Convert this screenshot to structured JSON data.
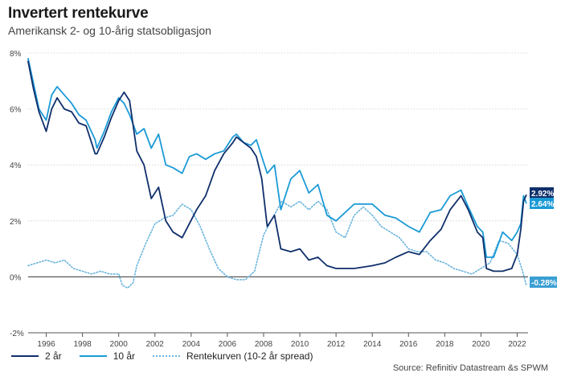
{
  "title": "Invertert rentekurve",
  "subtitle": "Amerikansk 2- og 10-årig statsobligasjon",
  "source": "Source: Refinitiv Datastream &s SPWM",
  "colors": {
    "y2": "#0f2f6b",
    "y10": "#1a9ad6",
    "spread": "#6ab4dc",
    "grid": "#cfcfcf",
    "zero": "#333333"
  },
  "legend": [
    {
      "label": "2 år",
      "series": "y2"
    },
    {
      "label": "10 år",
      "series": "y10"
    },
    {
      "label": "Rentekurven (10-2 år spread)",
      "series": "spread"
    }
  ],
  "chart_data": {
    "type": "line",
    "title": "Invertert rentekurve",
    "subtitle": "Amerikansk 2- og 10-årig statsobligasjon",
    "xlabel": "",
    "ylabel": "",
    "x_range": [
      1995.0,
      2022.6
    ],
    "ylim": [
      -2,
      8
    ],
    "y_ticks": [
      8,
      6,
      4,
      2,
      0,
      -2
    ],
    "y_tick_labels": [
      "8%",
      "6%",
      "4%",
      "2%",
      "0%",
      "-2%"
    ],
    "x_ticks": [
      1996,
      1998,
      2000,
      2002,
      2004,
      2006,
      2008,
      2010,
      2012,
      2014,
      2016,
      2018,
      2020,
      2022
    ],
    "x_tick_labels": [
      "1996",
      "1998",
      "2000",
      "2002",
      "2004",
      "2006",
      "2008",
      "2010",
      "2012",
      "2014",
      "2016",
      "2018",
      "2020",
      "2022"
    ],
    "grid": true,
    "legend_position": "bottom-left",
    "series": [
      {
        "name": "2 år",
        "key": "y2",
        "style": "solid",
        "end_label": "2.92%",
        "x": [
          1995.0,
          1995.3,
          1995.6,
          1996.0,
          1996.3,
          1996.6,
          1997.0,
          1997.4,
          1997.8,
          1998.2,
          1998.7,
          1998.8,
          1999.2,
          1999.6,
          2000.0,
          2000.3,
          2000.6,
          2001.0,
          2001.4,
          2001.8,
          2002.2,
          2002.6,
          2003.0,
          2003.5,
          2003.9,
          2004.3,
          2004.8,
          2005.3,
          2005.8,
          2006.3,
          2006.5,
          2006.9,
          2007.3,
          2007.6,
          2007.9,
          2008.2,
          2008.6,
          2008.95,
          2009.5,
          2010.0,
          2010.5,
          2011.0,
          2011.5,
          2012.0,
          2013.0,
          2014.0,
          2014.7,
          2015.3,
          2016.0,
          2016.6,
          2017.2,
          2017.8,
          2018.3,
          2018.9,
          2019.3,
          2019.8,
          2020.1,
          2020.3,
          2020.7,
          2021.2,
          2021.7,
          2022.0,
          2022.2,
          2022.35,
          2022.5
        ],
        "y": [
          7.7,
          6.7,
          5.9,
          5.2,
          6.0,
          6.4,
          6.0,
          5.9,
          5.5,
          5.4,
          4.4,
          4.4,
          5.0,
          5.7,
          6.3,
          6.6,
          6.3,
          4.5,
          4.0,
          2.8,
          3.2,
          2.0,
          1.6,
          1.4,
          1.9,
          2.4,
          2.9,
          3.8,
          4.4,
          4.8,
          5.0,
          4.8,
          4.6,
          4.3,
          3.5,
          1.8,
          2.2,
          1.0,
          0.9,
          1.0,
          0.6,
          0.7,
          0.4,
          0.3,
          0.3,
          0.4,
          0.5,
          0.7,
          0.9,
          0.8,
          1.3,
          1.7,
          2.4,
          2.9,
          2.4,
          1.6,
          1.4,
          0.3,
          0.2,
          0.2,
          0.3,
          0.8,
          1.7,
          2.7,
          2.92
        ]
      },
      {
        "name": "10 år",
        "key": "y10",
        "style": "solid",
        "end_label": "2.64%",
        "x": [
          1995.0,
          1995.3,
          1995.6,
          1996.0,
          1996.3,
          1996.6,
          1997.0,
          1997.4,
          1997.8,
          1998.2,
          1998.7,
          1998.8,
          1999.2,
          1999.6,
          2000.0,
          2000.3,
          2000.6,
          2001.0,
          2001.4,
          2001.8,
          2002.2,
          2002.6,
          2003.0,
          2003.5,
          2003.9,
          2004.3,
          2004.8,
          2005.3,
          2005.8,
          2006.3,
          2006.5,
          2006.9,
          2007.3,
          2007.6,
          2007.9,
          2008.2,
          2008.6,
          2008.95,
          2009.5,
          2010.0,
          2010.5,
          2011.0,
          2011.5,
          2012.0,
          2013.0,
          2014.0,
          2014.7,
          2015.3,
          2016.0,
          2016.6,
          2017.2,
          2017.8,
          2018.3,
          2018.9,
          2019.3,
          2019.8,
          2020.1,
          2020.3,
          2020.7,
          2021.2,
          2021.7,
          2022.0,
          2022.2,
          2022.35,
          2022.5
        ],
        "y": [
          7.8,
          6.9,
          6.0,
          5.6,
          6.5,
          6.8,
          6.5,
          6.2,
          5.8,
          5.6,
          4.9,
          4.6,
          5.2,
          5.9,
          6.4,
          6.2,
          5.8,
          5.1,
          5.3,
          4.6,
          5.1,
          4.0,
          3.9,
          3.7,
          4.3,
          4.4,
          4.2,
          4.4,
          4.5,
          5.0,
          5.1,
          4.8,
          4.7,
          4.9,
          4.3,
          3.7,
          4.0,
          2.4,
          3.5,
          3.8,
          3.0,
          3.3,
          2.2,
          2.0,
          2.6,
          2.6,
          2.2,
          2.1,
          1.8,
          1.6,
          2.3,
          2.4,
          2.9,
          3.1,
          2.5,
          1.8,
          1.6,
          0.7,
          0.7,
          1.6,
          1.3,
          1.6,
          1.9,
          2.9,
          2.64
        ]
      },
      {
        "name": "Rentekurven (10-2 år spread)",
        "key": "spread",
        "style": "dotted",
        "end_label": "-0.28%",
        "x": [
          1995.0,
          1995.5,
          1996.0,
          1996.5,
          1997.0,
          1997.5,
          1998.0,
          1998.5,
          1999.0,
          1999.5,
          2000.0,
          2000.2,
          2000.5,
          2000.8,
          2001.0,
          2001.5,
          2002.0,
          2002.5,
          2003.0,
          2003.5,
          2004.0,
          2004.5,
          2005.0,
          2005.5,
          2006.0,
          2006.5,
          2007.0,
          2007.5,
          2008.0,
          2008.5,
          2009.0,
          2009.5,
          2010.0,
          2010.5,
          2011.0,
          2011.5,
          2012.0,
          2012.5,
          2013.0,
          2013.5,
          2014.0,
          2014.5,
          2015.0,
          2015.5,
          2016.0,
          2016.5,
          2017.0,
          2017.5,
          2018.0,
          2018.5,
          2019.0,
          2019.5,
          2020.0,
          2020.5,
          2021.0,
          2021.5,
          2022.0,
          2022.3,
          2022.5
        ],
        "y": [
          0.4,
          0.5,
          0.6,
          0.5,
          0.6,
          0.3,
          0.2,
          0.1,
          0.2,
          0.1,
          0.1,
          -0.3,
          -0.4,
          -0.2,
          0.4,
          1.2,
          1.9,
          2.1,
          2.2,
          2.6,
          2.4,
          1.8,
          1.0,
          0.3,
          0.0,
          -0.1,
          -0.1,
          0.2,
          1.5,
          2.1,
          2.7,
          2.5,
          2.7,
          2.4,
          2.7,
          2.4,
          1.6,
          1.4,
          2.2,
          2.5,
          2.2,
          1.8,
          1.6,
          1.4,
          1.0,
          0.9,
          0.9,
          0.6,
          0.5,
          0.3,
          0.2,
          0.1,
          0.3,
          0.5,
          1.3,
          1.2,
          0.8,
          0.2,
          -0.28
        ]
      }
    ]
  }
}
